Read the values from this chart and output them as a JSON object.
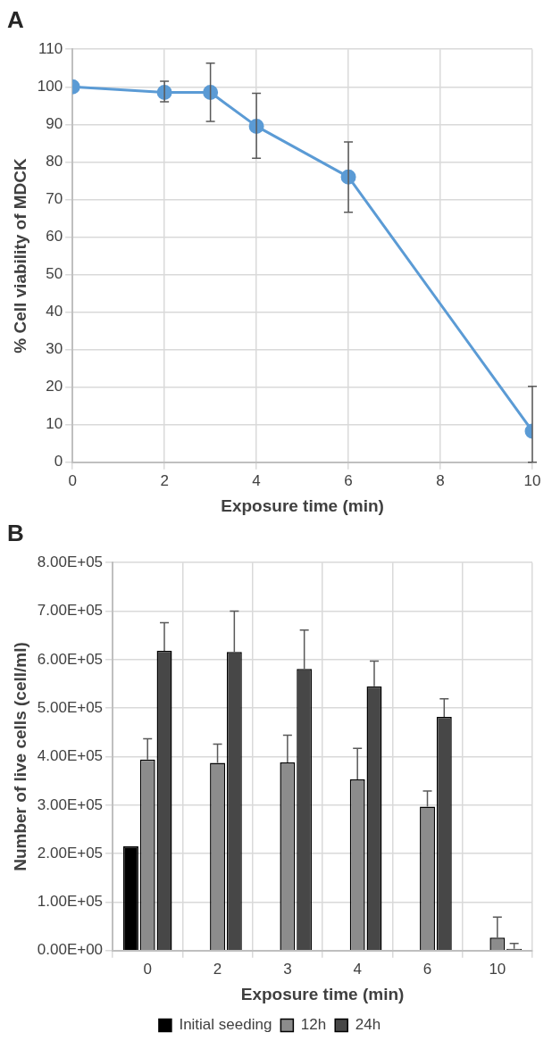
{
  "chart_data": [
    {
      "type": "line",
      "title": "A",
      "xlabel": "Exposure time (min)",
      "ylabel": "% Cell viability of MDCK",
      "x": [
        0,
        2,
        3,
        4,
        6,
        10
      ],
      "series": [
        {
          "color": "#5b9bd5",
          "values": [
            100,
            98.5,
            98.5,
            89.5,
            76,
            8.3
          ],
          "errors": [
            null,
            [
              96,
              101.5
            ],
            [
              90.8,
              106.3
            ],
            [
              81,
              98.3
            ],
            [
              66.6,
              85.3
            ],
            [
              0,
              20.2
            ]
          ]
        }
      ],
      "xlim": [
        0,
        10
      ],
      "xticks": [
        0,
        2,
        4,
        6,
        8,
        10
      ],
      "ylim": [
        0,
        110
      ],
      "yticks": [
        0,
        10,
        20,
        30,
        40,
        50,
        60,
        70,
        80,
        90,
        100,
        110
      ],
      "grid": true,
      "marker": "circle",
      "line_style": "solid"
    },
    {
      "type": "bar",
      "title": "B",
      "xlabel": "Exposure time (min)",
      "ylabel": "Number of live cells (cell/ml)",
      "categories": [
        "0",
        "2",
        "3",
        "4",
        "6",
        "10"
      ],
      "series": [
        {
          "name": "Initial seeding",
          "color": "#000000",
          "values": [
            215000,
            null,
            null,
            null,
            null,
            null
          ]
        },
        {
          "name": "12h",
          "color": "#8c8c8c",
          "values": [
            394000,
            387000,
            388000,
            353000,
            297000,
            27000
          ],
          "errors": [
            [
              394000,
              437000
            ],
            [
              387000,
              426000
            ],
            [
              388000,
              444000
            ],
            [
              353000,
              417000
            ],
            [
              297000,
              329000
            ],
            [
              27000,
              69000
            ]
          ]
        },
        {
          "name": "24h",
          "color": "#474747",
          "values": [
            618000,
            616000,
            581000,
            545000,
            482000,
            4000
          ],
          "errors": [
            [
              618000,
              676000
            ],
            [
              616000,
              700000
            ],
            [
              581000,
              661000
            ],
            [
              545000,
              597000
            ],
            [
              482000,
              519000
            ],
            [
              4000,
              15000
            ]
          ]
        }
      ],
      "ylim": [
        0,
        800000
      ],
      "yticks": [
        {
          "value": 0,
          "label": "0.00E+00"
        },
        {
          "value": 100000,
          "label": "1.00E+05"
        },
        {
          "value": 200000,
          "label": "2.00E+05"
        },
        {
          "value": 300000,
          "label": "3.00E+05"
        },
        {
          "value": 400000,
          "label": "4.00E+05"
        },
        {
          "value": 500000,
          "label": "5.00E+05"
        },
        {
          "value": 600000,
          "label": "6.00E+05"
        },
        {
          "value": 700000,
          "label": "7.00E+05"
        },
        {
          "value": 800000,
          "label": "8.00E+05"
        }
      ],
      "grid": true,
      "legend": "bottom"
    }
  ]
}
